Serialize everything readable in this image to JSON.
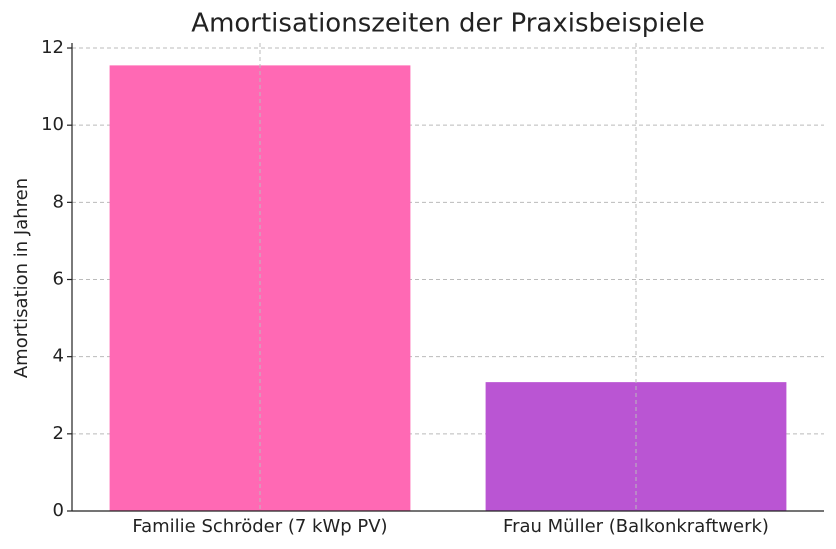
{
  "chart_data": {
    "type": "bar",
    "title": "Amortisationszeiten der Praxisbeispiele",
    "y_label": "Amortisation in Jahren",
    "categories": [
      "Familie Schröder (7 kWp PV)",
      "Frau Müller (Balkonkraftwerk)"
    ],
    "values": [
      11.55,
      3.34
    ],
    "colors": [
      "#ff69b4",
      "#ba55d3"
    ],
    "ylim": [
      0,
      12.13
    ],
    "yticks": [
      0,
      2,
      4,
      6,
      8,
      10,
      12
    ],
    "grid": true
  }
}
